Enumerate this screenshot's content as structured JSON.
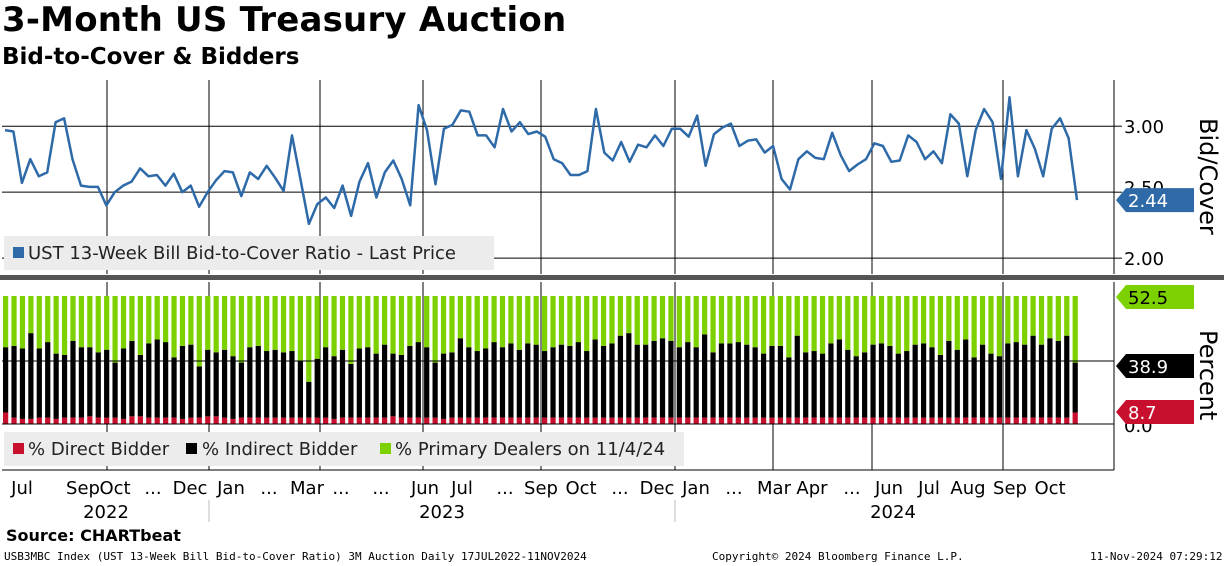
{
  "header": {
    "title": "3-Month US Treasury Auction",
    "subtitle": "Bid-to-Cover & Bidders"
  },
  "footer": {
    "source": "Source: CHARTbeat",
    "index_info": "USB3MBC Index (UST 13-Week Bill Bid-to-Cover Ratio) 3M Auction  Daily 17JUL2022-11NOV2024",
    "copyright": "Copyright© 2024 Bloomberg Finance L.P.",
    "timestamp": "11-Nov-2024 07:29:12"
  },
  "colors": {
    "line": "#2e6aa8",
    "direct": "#c8102e",
    "indirect": "#000000",
    "primary": "#7dd100"
  },
  "chart_data": [
    {
      "type": "line",
      "title": "UST 13-Week Bill Bid-to-Cover Ratio",
      "legend": [
        "UST 13-Week Bill Bid-to-Cover Ratio - Last Price"
      ],
      "axis_label": "Bid/Cover",
      "yticks": [
        "3.00",
        "2.50",
        "2.00"
      ],
      "ylim": [
        1.88,
        3.35
      ],
      "last_value": "2.44",
      "values": [
        2.97,
        2.96,
        2.57,
        2.75,
        2.62,
        2.65,
        3.03,
        3.06,
        2.75,
        2.55,
        2.54,
        2.54,
        2.4,
        2.5,
        2.55,
        2.58,
        2.68,
        2.62,
        2.63,
        2.55,
        2.64,
        2.5,
        2.55,
        2.39,
        2.5,
        2.59,
        2.66,
        2.65,
        2.47,
        2.65,
        2.6,
        2.7,
        2.61,
        2.51,
        2.93,
        2.6,
        2.26,
        2.41,
        2.46,
        2.38,
        2.55,
        2.32,
        2.58,
        2.72,
        2.46,
        2.65,
        2.74,
        2.6,
        2.4,
        3.16,
        2.97,
        2.56,
        2.98,
        3.01,
        3.12,
        3.11,
        2.93,
        2.93,
        2.84,
        3.13,
        2.96,
        3.03,
        2.94,
        2.96,
        2.92,
        2.75,
        2.72,
        2.63,
        2.63,
        2.66,
        3.13,
        2.8,
        2.74,
        2.88,
        2.73,
        2.86,
        2.84,
        2.93,
        2.85,
        2.98,
        2.98,
        2.92,
        3.08,
        2.7,
        2.94,
        2.99,
        3.02,
        2.85,
        2.89,
        2.9,
        2.8,
        2.85,
        2.6,
        2.52,
        2.75,
        2.81,
        2.76,
        2.75,
        2.95,
        2.78,
        2.66,
        2.71,
        2.75,
        2.87,
        2.85,
        2.73,
        2.74,
        2.93,
        2.88,
        2.75,
        2.81,
        2.72,
        3.09,
        3.02,
        2.62,
        2.97,
        3.13,
        3.03,
        2.6,
        3.22,
        2.62,
        2.97,
        2.83,
        2.62,
        2.98,
        3.06,
        2.91,
        2.44
      ],
      "x_tick_labels": [
        "Jul",
        "Sep",
        "Oct",
        "...",
        "Dec",
        "Jan",
        "...",
        "Mar",
        "...",
        "...",
        "Jun",
        "Jul",
        "...",
        "Sep",
        "Oct",
        "...",
        "Dec",
        "Jan",
        "...",
        "Mar",
        "Apr",
        "...",
        "Jun",
        "Jul",
        "Aug",
        "Sep",
        "Oct"
      ],
      "x_year_labels": [
        "2022",
        "2023",
        "2024"
      ]
    },
    {
      "type": "bar",
      "stacked": true,
      "title": "Auction Bidder Allocation",
      "legend": [
        "% Direct Bidder",
        "% Indirect Bidder",
        "% Primary Dealers on 11/4/24"
      ],
      "axis_label": "Percent",
      "yticks": [
        "0.0"
      ],
      "ylim": [
        0,
        100
      ],
      "last_values": {
        "primary": "52.5",
        "indirect": "38.9",
        "direct": "8.7"
      },
      "series": [
        {
          "name": "% Direct Bidder",
          "values": [
            9,
            5,
            4,
            4,
            5,
            5,
            4,
            5,
            5,
            5,
            6,
            5,
            5,
            5,
            4,
            6,
            6,
            5,
            5,
            5,
            5,
            4,
            5,
            5,
            6,
            6,
            5,
            4,
            5,
            5,
            5,
            5,
            5,
            5,
            5,
            5,
            5,
            5,
            5,
            4,
            5,
            5,
            5,
            5,
            5,
            5,
            6,
            5,
            5,
            5,
            5,
            5,
            4,
            5,
            5,
            5,
            5,
            5,
            5,
            5,
            5,
            5,
            5,
            5,
            5,
            5,
            5,
            5,
            5,
            5,
            5,
            5,
            5,
            5,
            5,
            5,
            5,
            5,
            5,
            5,
            5,
            5,
            5,
            5,
            5,
            5,
            5,
            5,
            5,
            5,
            5,
            5,
            5,
            5,
            5,
            5,
            5,
            5,
            5,
            5,
            5,
            5,
            5,
            5,
            5,
            5,
            5,
            5,
            5,
            5,
            5,
            5,
            5,
            5,
            5,
            5,
            5,
            5,
            5,
            5,
            5,
            5,
            5,
            5,
            5,
            5,
            5,
            9
          ]
        },
        {
          "name": "% Indirect Bidder",
          "values": [
            51,
            56,
            55,
            67,
            54,
            59,
            51,
            49,
            60,
            55,
            54,
            51,
            53,
            43,
            55,
            59,
            48,
            58,
            61,
            59,
            47,
            57,
            57,
            40,
            52,
            50,
            53,
            49,
            43,
            55,
            56,
            52,
            53,
            51,
            52,
            44,
            28,
            46,
            55,
            49,
            53,
            42,
            54,
            55,
            50,
            57,
            49,
            49,
            56,
            59,
            55,
            43,
            51,
            51,
            62,
            55,
            52,
            54,
            59,
            55,
            58,
            53,
            58,
            57,
            52,
            55,
            57,
            56,
            59,
            52,
            61,
            56,
            58,
            64,
            66,
            57,
            57,
            60,
            62,
            60,
            55,
            59,
            55,
            65,
            51,
            58,
            58,
            59,
            57,
            55,
            50,
            56,
            56,
            47,
            64,
            51,
            52,
            50,
            58,
            61,
            53,
            48,
            51,
            57,
            58,
            56,
            50,
            52,
            57,
            58,
            55,
            49,
            60,
            53,
            61,
            47,
            57,
            50,
            48,
            58,
            59,
            57,
            64,
            57,
            62,
            60,
            64,
            39
          ]
        },
        {
          "name": "% Primary Dealers on 11/4/24",
          "values": [
            40,
            39,
            41,
            29,
            41,
            36,
            45,
            46,
            35,
            40,
            40,
            44,
            42,
            52,
            41,
            35,
            46,
            37,
            34,
            36,
            48,
            39,
            38,
            55,
            42,
            44,
            42,
            47,
            52,
            40,
            39,
            43,
            42,
            44,
            43,
            51,
            67,
            49,
            40,
            47,
            42,
            53,
            41,
            40,
            45,
            38,
            45,
            46,
            39,
            36,
            40,
            52,
            45,
            44,
            33,
            40,
            43,
            41,
            36,
            40,
            37,
            42,
            37,
            38,
            43,
            40,
            38,
            39,
            36,
            43,
            34,
            39,
            37,
            31,
            29,
            38,
            38,
            35,
            33,
            35,
            40,
            36,
            40,
            30,
            44,
            37,
            37,
            36,
            38,
            40,
            45,
            39,
            39,
            48,
            31,
            44,
            43,
            45,
            37,
            34,
            42,
            47,
            44,
            38,
            37,
            39,
            45,
            43,
            38,
            37,
            40,
            46,
            35,
            42,
            34,
            48,
            38,
            45,
            47,
            37,
            36,
            38,
            31,
            38,
            33,
            35,
            31,
            52
          ]
        }
      ]
    }
  ]
}
